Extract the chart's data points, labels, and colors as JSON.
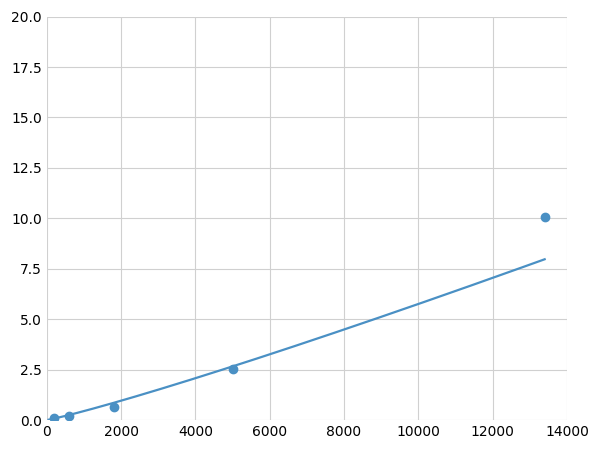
{
  "x_data": [
    200,
    600,
    1800,
    5000,
    13400
  ],
  "y_data": [
    0.1,
    0.2,
    0.65,
    2.55,
    10.05
  ],
  "line_color": "#4a90c4",
  "marker_color": "#4a90c4",
  "xlim": [
    0,
    14000
  ],
  "ylim": [
    0,
    20.0
  ],
  "xticks": [
    0,
    2000,
    4000,
    6000,
    8000,
    10000,
    12000,
    14000
  ],
  "yticks": [
    0.0,
    2.5,
    5.0,
    7.5,
    10.0,
    12.5,
    15.0,
    17.5,
    20.0
  ],
  "grid_color": "#d0d0d0",
  "background_color": "#ffffff",
  "marker_size": 6,
  "line_width": 1.6,
  "figsize": [
    6.0,
    4.5
  ],
  "dpi": 100
}
